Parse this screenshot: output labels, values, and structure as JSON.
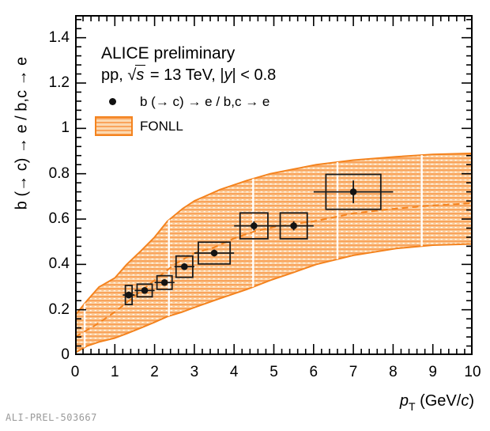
{
  "watermark": "ALI-PREL-503667",
  "annotations": {
    "alice": "ALICE preliminary",
    "system_prefix": "pp, ",
    "sqrt_symbol": "√",
    "sqrt_arg": "s",
    "system_mid": " = 13 TeV, |",
    "system_y": "y",
    "system_suffix": "| < 0.8"
  },
  "legend": {
    "data_label": "b (→ c) → e / b,c → e",
    "band_label": "FONLL"
  },
  "axes": {
    "x": {
      "title_p": "p",
      "title_sub": "T",
      "title_mid": " (GeV/",
      "title_c": "c",
      "title_close": ")",
      "tick_labels": [
        "0",
        "1",
        "2",
        "3",
        "4",
        "5",
        "6",
        "7",
        "8",
        "9",
        "10"
      ],
      "ticks": [
        0,
        1,
        2,
        3,
        4,
        5,
        6,
        7,
        8,
        9,
        10
      ],
      "minor_step": 0.2
    },
    "y": {
      "title": "b (→ c) → e / b,c → e",
      "tick_labels": [
        "0",
        "0.2",
        "0.4",
        "0.6",
        "0.8",
        "1",
        "1.2",
        "1.4"
      ],
      "ticks": [
        0,
        0.2,
        0.4,
        0.6,
        0.8,
        1,
        1.2,
        1.4
      ],
      "minor_step": 0.04
    }
  },
  "colors": {
    "orange_line": "#f4831e",
    "band_stripe_dark": "#f9a45c",
    "band_stripe_light": "#fcd9b0",
    "marker": "#141414",
    "frame": "#000000",
    "watermark": "#9a9a9a"
  },
  "chart_data": {
    "type": "scatter",
    "title": "ALICE preliminary, pp, √s = 13 TeV, |y| < 0.8",
    "xlabel": "p_T (GeV/c)",
    "ylabel": "b (→ c) → e / b,c → e",
    "xlim": [
      0,
      10
    ],
    "ylim": [
      0,
      1.5
    ],
    "grid": false,
    "legend_position": "top-left",
    "series_label": "b (→ c) → e / b,c → e",
    "band_label": "FONLL",
    "points": [
      {
        "x": 1.35,
        "xlow": 1.2,
        "xhigh": 1.5,
        "y": 0.265,
        "stat": 0.015,
        "box_dx": 0.085,
        "box_dy": 0.042
      },
      {
        "x": 1.75,
        "xlow": 1.5,
        "xhigh": 2.0,
        "y": 0.285,
        "stat": 0.012,
        "box_dx": 0.19,
        "box_dy": 0.028
      },
      {
        "x": 2.25,
        "xlow": 2.0,
        "xhigh": 2.5,
        "y": 0.32,
        "stat": 0.012,
        "box_dx": 0.19,
        "box_dy": 0.03
      },
      {
        "x": 2.75,
        "xlow": 2.5,
        "xhigh": 3.0,
        "y": 0.39,
        "stat": 0.015,
        "box_dx": 0.21,
        "box_dy": 0.047
      },
      {
        "x": 3.5,
        "xlow": 3.0,
        "xhigh": 4.0,
        "y": 0.45,
        "stat": 0.015,
        "box_dx": 0.4,
        "box_dy": 0.048
      },
      {
        "x": 4.5,
        "xlow": 4.0,
        "xhigh": 5.0,
        "y": 0.57,
        "stat": 0.02,
        "box_dx": 0.35,
        "box_dy": 0.057
      },
      {
        "x": 5.5,
        "xlow": 5.0,
        "xhigh": 6.0,
        "y": 0.57,
        "stat": 0.02,
        "box_dx": 0.34,
        "box_dy": 0.057
      },
      {
        "x": 7.0,
        "xlow": 6.0,
        "xhigh": 8.0,
        "y": 0.72,
        "stat": 0.05,
        "box_dx": 0.69,
        "box_dy": 0.077
      }
    ],
    "fonll_band": {
      "x": [
        0,
        0.3,
        0.6,
        1.0,
        1.3,
        1.66,
        2.0,
        2.32,
        2.7,
        3.0,
        3.65,
        4.32,
        4.91,
        5.5,
        6.07,
        7.0,
        8.07,
        9.0,
        10.0
      ],
      "upper": [
        0.175,
        0.24,
        0.3,
        0.34,
        0.4,
        0.46,
        0.52,
        0.59,
        0.645,
        0.68,
        0.73,
        0.77,
        0.8,
        0.82,
        0.84,
        0.86,
        0.875,
        0.885,
        0.89
      ],
      "lower": [
        0.01,
        0.04,
        0.058,
        0.075,
        0.095,
        0.12,
        0.145,
        0.17,
        0.19,
        0.21,
        0.25,
        0.29,
        0.33,
        0.365,
        0.4,
        0.44,
        0.47,
        0.485,
        0.49
      ]
    },
    "fonll_central": {
      "x": [
        0,
        0.5,
        1,
        1.5,
        2,
        2.5,
        3,
        3.5,
        4,
        4.5,
        5,
        5.5,
        6,
        7,
        8,
        9,
        10
      ],
      "y": [
        0.08,
        0.13,
        0.19,
        0.26,
        0.33,
        0.4,
        0.45,
        0.475,
        0.515,
        0.545,
        0.565,
        0.578,
        0.59,
        0.625,
        0.645,
        0.66,
        0.67
      ]
    },
    "seam_lines_x": [
      0.24,
      2.36,
      4.48,
      6.6,
      8.72
    ]
  }
}
